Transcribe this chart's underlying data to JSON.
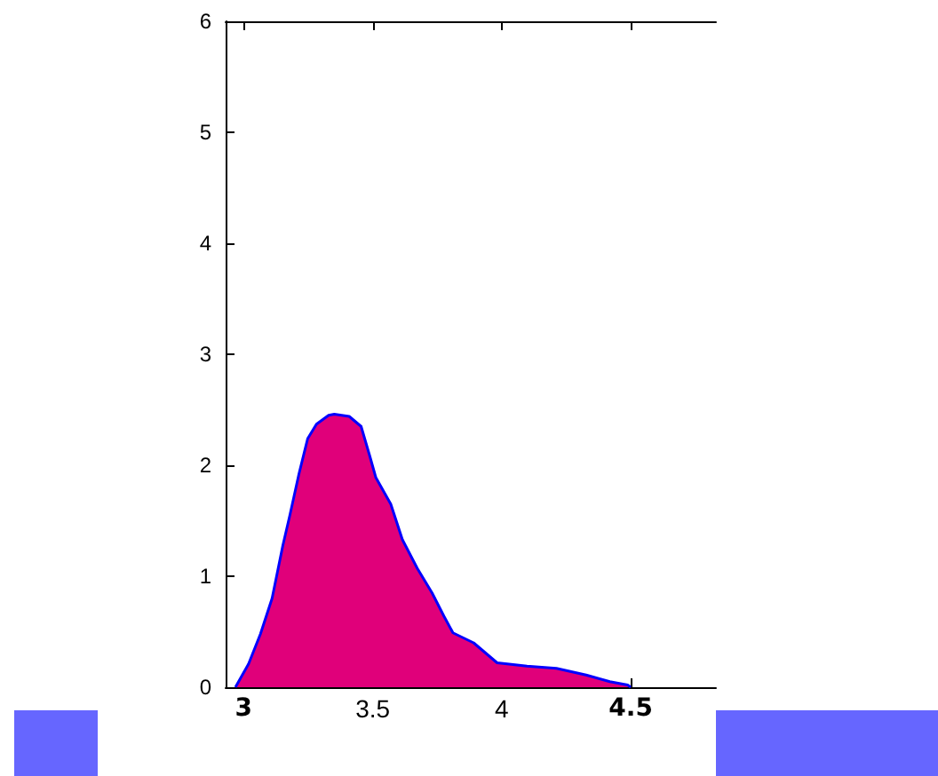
{
  "chart_data": {
    "type": "area",
    "x": [
      2.968,
      3.019,
      3.065,
      3.11,
      3.152,
      3.179,
      3.214,
      3.248,
      3.282,
      3.329,
      3.351,
      3.409,
      3.455,
      3.489,
      3.512,
      3.57,
      3.615,
      3.673,
      3.73,
      3.776,
      3.811,
      3.891,
      3.982,
      4.098,
      4.212,
      4.327,
      4.419,
      4.488,
      4.5
    ],
    "series": [
      {
        "color": "#e0007a",
        "values": [
          0,
          0.21,
          0.48,
          0.8,
          1.28,
          1.55,
          1.92,
          2.24,
          2.37,
          2.45,
          2.46,
          2.44,
          2.35,
          2.08,
          1.89,
          1.65,
          1.33,
          1.07,
          0.85,
          0.64,
          0.49,
          0.4,
          0.22,
          0.19,
          0.17,
          0.11,
          0.05,
          0.02,
          0
        ]
      }
    ],
    "xlim": [
      2.93,
      4.83
    ],
    "xticks": [
      3,
      3.5,
      4,
      4.5
    ],
    "ylim": [
      0,
      6
    ],
    "yticks": [
      0,
      1,
      2,
      3,
      4,
      5,
      6
    ],
    "grid": false
  }
}
